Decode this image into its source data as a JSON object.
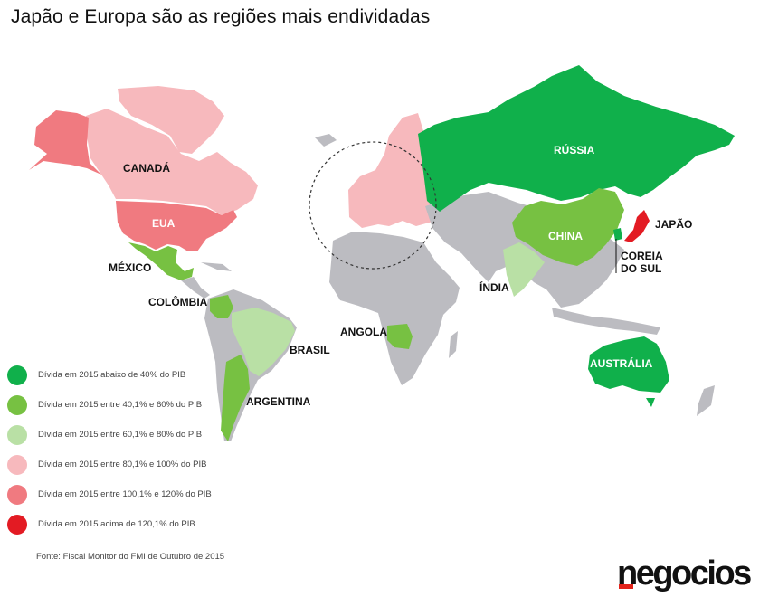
{
  "title": "Japão e Europa são as regiões mais endividadas",
  "colors": {
    "below_40": "#10b04b",
    "40_60": "#77c142",
    "60_80": "#b9e0a5",
    "80_100": "#f7b9bd",
    "100_120": "#f07a80",
    "above_120": "#e31b23",
    "no_data": "#bcbcc1"
  },
  "countries": [
    {
      "label": "CANADÁ",
      "category": "80_100"
    },
    {
      "label": "EUA",
      "category": "100_120"
    },
    {
      "label": "MÉXICO",
      "category": "40_60"
    },
    {
      "label": "COLÔMBIA",
      "category": "40_60"
    },
    {
      "label": "BRASIL",
      "category": "60_80"
    },
    {
      "label": "ARGENTINA",
      "category": "40_60"
    },
    {
      "label": "ANGOLA",
      "category": "40_60"
    },
    {
      "label": "RÚSSIA",
      "category": "below_40"
    },
    {
      "label": "CHINA",
      "category": "40_60"
    },
    {
      "label": "ÍNDIA",
      "category": "60_80"
    },
    {
      "label": "JAPÃO",
      "category": "above_120"
    },
    {
      "label": "COREIA",
      "label2": "DO SUL",
      "category": "below_40"
    },
    {
      "label": "AUSTRÁLIA",
      "category": "below_40"
    }
  ],
  "legend": [
    {
      "color": "#10b04b",
      "text": "Dívida em 2015 abaixo de 40% do PIB"
    },
    {
      "color": "#77c142",
      "text": "Dívida em 2015 entre 40,1% e 60% do PIB"
    },
    {
      "color": "#b9e0a5",
      "text": "Dívida em 2015 entre 60,1% e 80% do PIB"
    },
    {
      "color": "#f7b9bd",
      "text": "Dívida em 2015 entre 80,1% e 100% do PIB"
    },
    {
      "color": "#f07a80",
      "text": "Dívida em 2015 entre 100,1% e 120% do PIB"
    },
    {
      "color": "#e31b23",
      "text": "Dívida em 2015 acima de 120,1% do PIB"
    }
  ],
  "source": "Fonte: Fiscal Monitor do FMI de Outubro de 2015",
  "logo": "negocios"
}
